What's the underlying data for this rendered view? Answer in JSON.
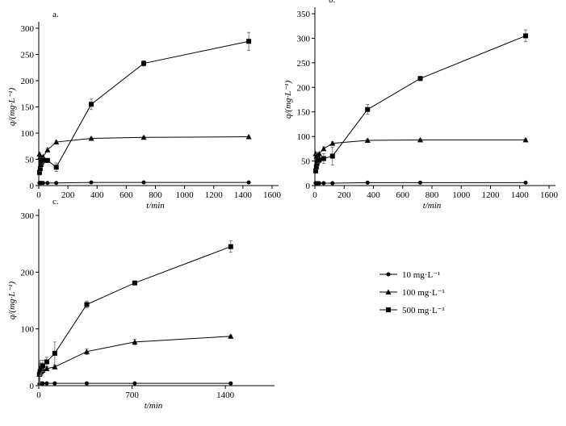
{
  "chart_data": [
    {
      "type": "line",
      "title": "a.",
      "xlabel": "t/min",
      "ylabel": "q/(mg·L⁻¹)",
      "xlim": [
        0,
        1600
      ],
      "xticks": [
        0,
        200,
        400,
        600,
        800,
        1000,
        1200,
        1400,
        1600
      ],
      "ylim": [
        0,
        300
      ],
      "yticks": [
        0,
        50,
        100,
        150,
        200,
        250,
        300
      ],
      "x": [
        5,
        10,
        15,
        20,
        30,
        60,
        120,
        360,
        720,
        1440
      ],
      "series": [
        {
          "marker": "circle",
          "color": "#000000",
          "values": [
            5,
            5,
            5,
            5,
            5,
            5,
            5,
            6,
            6,
            6
          ]
        },
        {
          "marker": "triangle",
          "color": "#000000",
          "values": [
            60,
            55,
            50,
            52,
            55,
            68,
            83,
            90,
            92,
            93
          ],
          "errors": [
            3,
            3,
            3,
            3,
            3,
            3,
            3,
            2,
            2,
            2
          ]
        },
        {
          "marker": "square",
          "color": "#000000",
          "values": [
            25,
            32,
            40,
            45,
            48,
            48,
            35,
            155,
            233,
            275
          ],
          "errors": [
            5,
            5,
            5,
            5,
            5,
            3,
            8,
            10,
            5,
            17
          ]
        }
      ]
    },
    {
      "type": "line",
      "title": "b.",
      "xlabel": "t/min",
      "ylabel": "q/(mg·L⁻¹)",
      "xlim": [
        0,
        1600
      ],
      "xticks": [
        0,
        200,
        400,
        600,
        800,
        1000,
        1200,
        1400,
        1600
      ],
      "ylim": [
        0,
        350
      ],
      "yticks": [
        0,
        50,
        100,
        150,
        200,
        250,
        300,
        350
      ],
      "x": [
        5,
        10,
        15,
        20,
        30,
        60,
        120,
        360,
        720,
        1440
      ],
      "series": [
        {
          "marker": "circle",
          "color": "#000000",
          "values": [
            5,
            5,
            5,
            5,
            5,
            5,
            5,
            6,
            6,
            6
          ]
        },
        {
          "marker": "triangle",
          "color": "#000000",
          "values": [
            65,
            60,
            60,
            62,
            65,
            75,
            86,
            92,
            93,
            93
          ],
          "errors": [
            3,
            3,
            3,
            3,
            3,
            4,
            3,
            3,
            2,
            2
          ]
        },
        {
          "marker": "square",
          "color": "#000000",
          "values": [
            30,
            38,
            45,
            50,
            52,
            55,
            60,
            155,
            218,
            305
          ],
          "errors": [
            5,
            5,
            5,
            5,
            5,
            10,
            18,
            10,
            3,
            12
          ]
        }
      ]
    },
    {
      "type": "line",
      "title": "c.",
      "xlabel": "t/min",
      "ylabel": "q/(mg·L⁻¹)",
      "xlim": [
        0,
        1720
      ],
      "xticks": [
        0,
        700,
        1400
      ],
      "ylim": [
        0,
        300
      ],
      "yticks": [
        0,
        100,
        200,
        300
      ],
      "x": [
        5,
        10,
        15,
        20,
        30,
        60,
        120,
        360,
        720,
        1440
      ],
      "series": [
        {
          "name": "10 mg·L⁻¹",
          "marker": "circle",
          "color": "#000000",
          "values": [
            3,
            3,
            3,
            4,
            4,
            4,
            4,
            4,
            4,
            4
          ]
        },
        {
          "name": "100 mg·L⁻¹",
          "marker": "triangle",
          "color": "#000000",
          "values": [
            20,
            22,
            25,
            25,
            27,
            30,
            33,
            60,
            77,
            87
          ],
          "errors": [
            3,
            3,
            3,
            3,
            3,
            3,
            3,
            5,
            5,
            2
          ]
        },
        {
          "name": "500 mg·L⁻¹",
          "marker": "square",
          "color": "#000000",
          "values": [
            20,
            25,
            28,
            30,
            35,
            42,
            57,
            143,
            181,
            245
          ],
          "errors": [
            20,
            20,
            10,
            10,
            10,
            8,
            20,
            6,
            3,
            10
          ]
        }
      ]
    }
  ]
}
